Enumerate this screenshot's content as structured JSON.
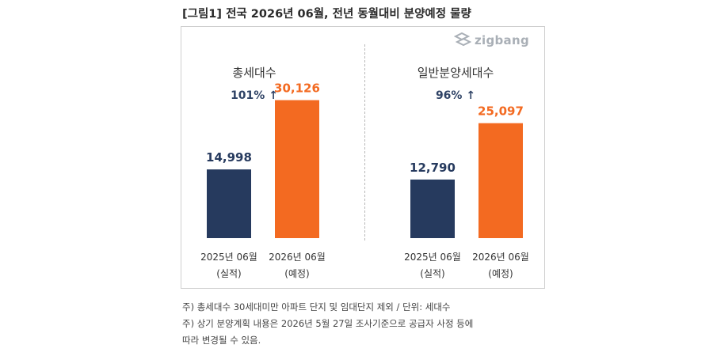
{
  "figure_title": "[그림1] 전국 2026년 06월, 전년 동월대비 분양예정 물량",
  "logo": {
    "text": "zigbang",
    "icon": "zigbang-logo-icon"
  },
  "colors": {
    "actual": "#263a5e",
    "planned": "#f36a21",
    "change": "#2f4366"
  },
  "chart_data": [
    {
      "type": "bar",
      "title": "총세대수",
      "change_label": "101% ↑",
      "categories": [
        {
          "line1": "2025년 06월",
          "line2": "(실적)"
        },
        {
          "line1": "2026년 06월",
          "line2": "(예정)"
        }
      ],
      "values": [
        14998,
        30126
      ],
      "value_labels": [
        "14,998",
        "30,126"
      ],
      "ylim": [
        0,
        38000
      ],
      "xlabel": "",
      "ylabel": ""
    },
    {
      "type": "bar",
      "title": "일반분양세대수",
      "change_label": "96% ↑",
      "categories": [
        {
          "line1": "2025년 06월",
          "line2": "(실적)"
        },
        {
          "line1": "2026년 06월",
          "line2": "(예정)"
        }
      ],
      "values": [
        12790,
        25097
      ],
      "value_labels": [
        "12,790",
        "25,097"
      ],
      "ylim": [
        0,
        38000
      ],
      "xlabel": "",
      "ylabel": ""
    }
  ],
  "notes": [
    "주) 총세대수 30세대미만 아파트  단지 및 임대단지 제외 / 단위: 세대수",
    "주) 상기 분양계획 내용은 2026년 5월 27일 조사기준으로 공급자 사정 등에",
    "따라 변경될 수 있음."
  ]
}
